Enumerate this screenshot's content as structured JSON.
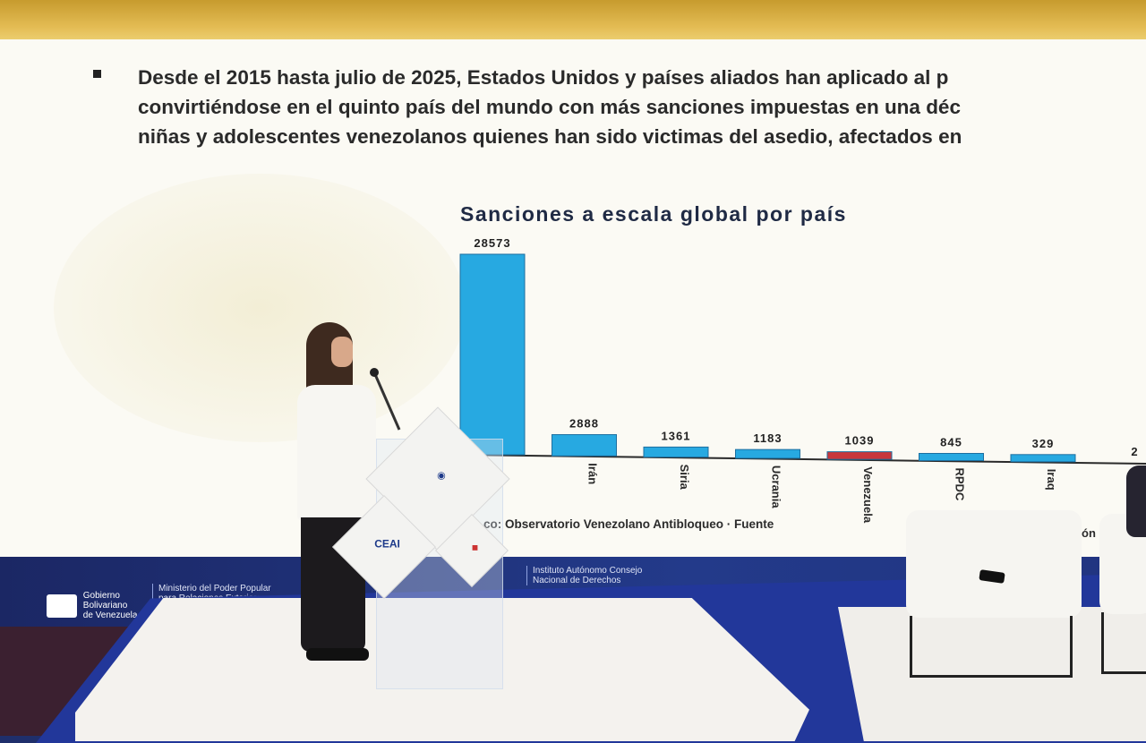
{
  "slide": {
    "paragraph_lines": [
      "Desde el 2015 hasta julio de 2025, Estados Unidos y países aliados han aplicado al p",
      "convirtiéndose en el quinto país del mundo con más sanciones impuestas en una déc",
      "niñas y adolescentes venezolanos quienes han sido victimas del asedio, afectados en"
    ],
    "chart_title": "Sanciones a escala global por país",
    "source_text": "co: Observatorio Venezolano Antibloqueo · Fuente",
    "source_tail": "ón"
  },
  "chart_data": {
    "type": "bar",
    "title": "Sanciones a escala global por país",
    "categories": [
      "",
      "Irán",
      "Siria",
      "Ucrania",
      "Venezuela",
      "RPDC",
      "Iraq",
      ""
    ],
    "values": [
      28573,
      2888,
      1361,
      1183,
      1039,
      845,
      329,
      null
    ],
    "value_labels": [
      "28573",
      "2888",
      "1361",
      "1183",
      "1039",
      "845",
      "329",
      "2"
    ],
    "colors": {
      "default": "#27a9e1",
      "highlight": "#c8373c"
    },
    "highlight_category": "Venezuela",
    "ylim": [
      0,
      28573
    ]
  },
  "podium": {
    "logo_main": "CEAI"
  },
  "footer": {
    "gov_line1": "Gobierno",
    "gov_line2": "Bolivariano",
    "gov_line3": "de Venezuela",
    "ministry_line1": "Ministerio del Poder Popular",
    "ministry_line2": "para Relaciones Exteriores",
    "institute_line1": "Instituto Autónomo Consejo",
    "institute_line2": "Nacional de Derechos"
  }
}
